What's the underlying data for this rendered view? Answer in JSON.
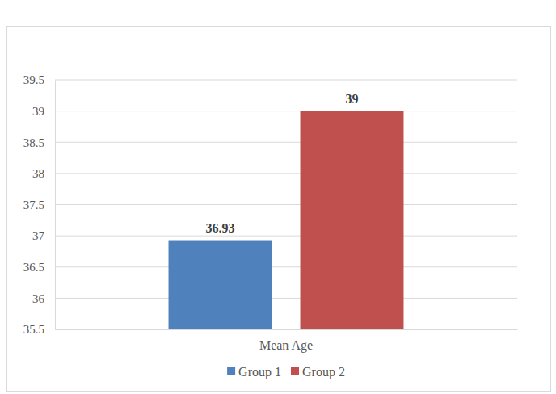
{
  "chart_data": {
    "type": "bar",
    "categories": [
      "Mean Age"
    ],
    "series": [
      {
        "name": "Group 1",
        "color": "#4f81bd",
        "values": [
          36.93
        ]
      },
      {
        "name": "Group 2",
        "color": "#c0504d",
        "values": [
          39
        ]
      }
    ],
    "ylim": [
      35.5,
      39.5
    ],
    "yticks": [
      35.5,
      36,
      36.5,
      37,
      37.5,
      38,
      38.5,
      39,
      39.5
    ],
    "grid": true,
    "legend": "bottom",
    "data_labels": true
  }
}
